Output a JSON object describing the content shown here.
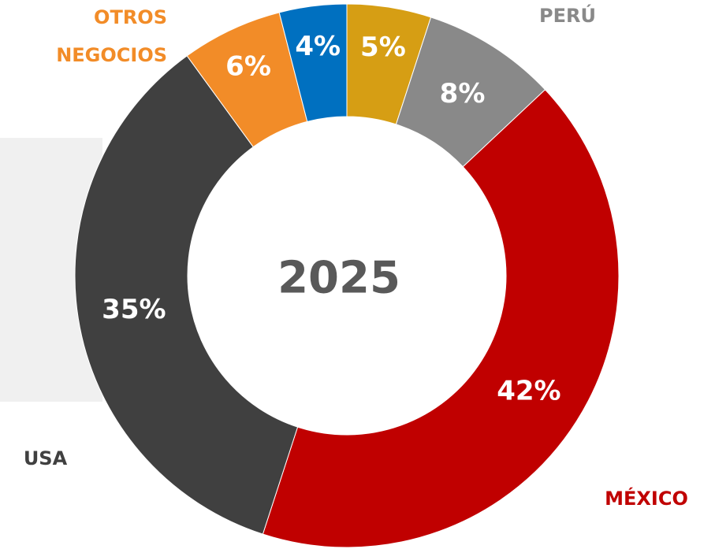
{
  "chart_data": {
    "type": "donut",
    "center_label": "2025",
    "categories": [
      null,
      "PERÚ",
      "MÉXICO",
      "USA",
      "OTROS NEGOCIOS",
      null
    ],
    "values": [
      5,
      8,
      42,
      35,
      6,
      4
    ],
    "value_labels": [
      "5%",
      "8%",
      "42%",
      "35%",
      "6%",
      "4%"
    ],
    "colors": [
      "#d69e14",
      "#898989",
      "#c00000",
      "#404040",
      "#f28c28",
      "#0070c0"
    ]
  }
}
